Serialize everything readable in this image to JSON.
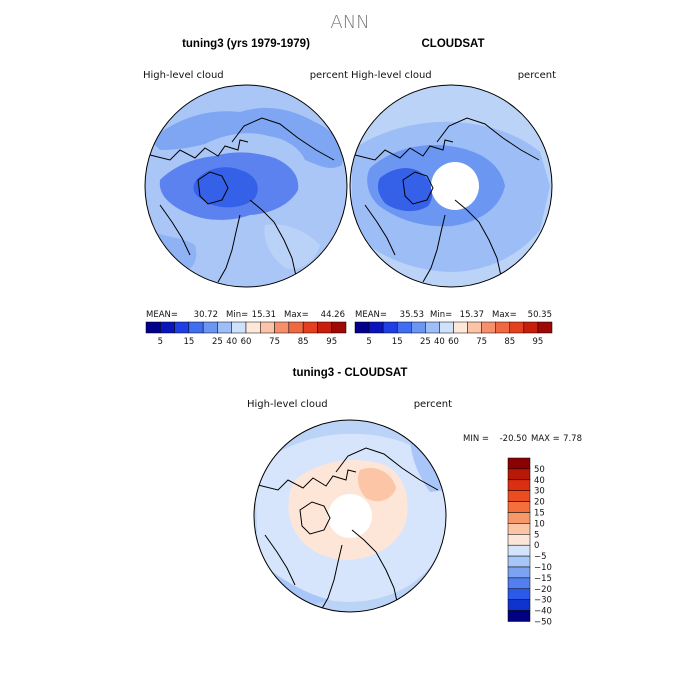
{
  "chart_data": {
    "type": "polar-contour-map",
    "title": "ANN",
    "panels": [
      {
        "name": "model",
        "heading": "tuning3 (yrs 1979-1979)",
        "variable": "High-level  cloud",
        "units": "percent",
        "stats": {
          "mean_label": "MEAN=",
          "mean": "30.72",
          "min_label": "Min=",
          "min": "15.31",
          "max_label": "Max=",
          "max": "44.26"
        },
        "dominant_level": 25
      },
      {
        "name": "obs",
        "heading": "CLOUDSAT",
        "variable": "High-level  cloud",
        "units": "percent",
        "stats": {
          "mean_label": "MEAN=",
          "mean": "35.53",
          "min_label": "Min=",
          "min": "15.37",
          "max_label": "Max=",
          "max": "50.35"
        },
        "dominant_level": 35,
        "missing_pole": true
      },
      {
        "name": "diff",
        "heading": "tuning3 - CLOUDSAT",
        "variable": "High-level  cloud",
        "units": "percent",
        "stats": {
          "min_label": "MIN =",
          "min": "-20.50",
          "max_label": "MAX =",
          "max": "7.78"
        },
        "missing_pole": true
      }
    ],
    "abs_colorbar": {
      "colors": [
        "#00008b",
        "#0a14bb",
        "#1f3fe5",
        "#3f6ff0",
        "#6b96f2",
        "#9dbef6",
        "#cfe1fb",
        "#fde8da",
        "#fbc4a8",
        "#f6906c",
        "#ef6a43",
        "#e4401f",
        "#c81e0b",
        "#9e0805"
      ],
      "labels": [
        "5",
        "15",
        "25",
        "40",
        "60",
        "75",
        "85",
        "95"
      ]
    },
    "diff_colorbar": {
      "colors": [
        "#8b0000",
        "#b81906",
        "#da2f10",
        "#ec4d20",
        "#f3703c",
        "#f7986b",
        "#fbc5a6",
        "#fde6d8",
        "#d3e4fb",
        "#a8c6f7",
        "#7ba3f2",
        "#527ff0",
        "#2b5ae8",
        "#0f33cc",
        "#000080"
      ],
      "labels": [
        "50",
        "40",
        "30",
        "20",
        "15",
        "10",
        "5",
        "0",
        "−5",
        "−10",
        "−15",
        "−20",
        "−30",
        "−40",
        "−50"
      ]
    }
  }
}
